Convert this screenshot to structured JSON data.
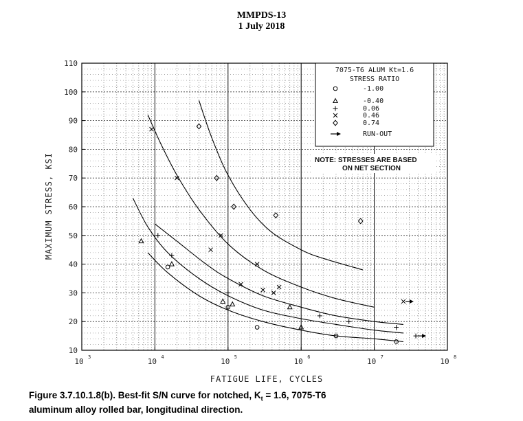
{
  "header": {
    "line1": "MMPDS-13",
    "line2": "1 July 2018"
  },
  "chart_data": {
    "type": "scatter",
    "xscale": "log",
    "xlim": [
      1000,
      100000000
    ],
    "ylim": [
      10,
      110
    ],
    "xlabel": "FATIGUE LIFE, CYCLES",
    "ylabel": "MAXIMUM STRESS, KSI",
    "yticks": [
      "10",
      "20",
      "30",
      "40",
      "50",
      "60",
      "70",
      "80",
      "90",
      "100",
      "110"
    ],
    "xticks": [
      {
        "value": 1000,
        "base": "10",
        "exp": "3"
      },
      {
        "value": 10000,
        "base": "10",
        "exp": "4"
      },
      {
        "value": 100000,
        "base": "10",
        "exp": "5"
      },
      {
        "value": 1000000,
        "base": "10",
        "exp": "6"
      },
      {
        "value": 10000000,
        "base": "10",
        "exp": "7"
      },
      {
        "value": 100000000,
        "base": "10",
        "exp": "8"
      }
    ],
    "grid": true,
    "legend_title": "7075-T6 ALUM Kt=1.6",
    "legend_subtitle": "STRESS RATIO",
    "legend": [
      {
        "symbol": "circle",
        "label": "-1.00"
      },
      {
        "symbol": "triangle",
        "label": "-0.40"
      },
      {
        "symbol": "plus",
        "label": "0.06"
      },
      {
        "symbol": "cross",
        "label": "0.46"
      },
      {
        "symbol": "diamond",
        "label": "0.74"
      },
      {
        "symbol": "arrow",
        "label": "RUN-OUT"
      }
    ],
    "note_line1": "NOTE: STRESSES ARE BASED",
    "note_line2": "ON NET SECTION",
    "series": [
      {
        "symbol": "circle",
        "points": [
          [
            15000,
            39
          ],
          [
            100000,
            25
          ],
          [
            250000,
            18
          ],
          [
            3000000,
            15
          ],
          [
            20000000,
            13
          ]
        ]
      },
      {
        "symbol": "triangle",
        "points": [
          [
            6500,
            48
          ],
          [
            17000,
            40
          ],
          [
            85000,
            27
          ],
          [
            115000,
            26
          ],
          [
            700000,
            25
          ],
          [
            1000000,
            18
          ]
        ]
      },
      {
        "symbol": "plus",
        "points": [
          [
            11000,
            50
          ],
          [
            17000,
            43
          ],
          [
            100000,
            30
          ],
          [
            1800000,
            22
          ],
          [
            4500000,
            20
          ],
          [
            20000000,
            18
          ]
        ]
      },
      {
        "symbol": "cross",
        "points": [
          [
            9000,
            87
          ],
          [
            20000,
            70
          ],
          [
            58000,
            45
          ],
          [
            80000,
            50
          ],
          [
            150000,
            33
          ],
          [
            250000,
            40
          ],
          [
            300000,
            31
          ],
          [
            420000,
            30
          ],
          [
            500000,
            32
          ]
        ]
      },
      {
        "symbol": "diamond",
        "points": [
          [
            40000,
            88
          ],
          [
            70000,
            70
          ],
          [
            120000,
            60
          ],
          [
            450000,
            57
          ],
          [
            6500000,
            55
          ]
        ]
      }
    ],
    "runouts": [
      {
        "symbol": "cross",
        "x": 25000000,
        "y": 27
      },
      {
        "symbol": "plus",
        "x": 37000000,
        "y": 15
      }
    ],
    "curves": [
      {
        "name": "R = 0.74",
        "points": [
          [
            40000,
            97
          ],
          [
            60000,
            84
          ],
          [
            100000,
            71
          ],
          [
            200000,
            59
          ],
          [
            400000,
            51
          ],
          [
            1000000,
            45
          ],
          [
            2000000,
            42
          ],
          [
            7000000,
            38
          ]
        ]
      },
      {
        "name": "R = 0.46",
        "points": [
          [
            8000,
            92
          ],
          [
            12000,
            82
          ],
          [
            20000,
            71
          ],
          [
            40000,
            59
          ],
          [
            100000,
            47
          ],
          [
            300000,
            38
          ],
          [
            1000000,
            32
          ],
          [
            3000000,
            28
          ],
          [
            10000000,
            25
          ]
        ]
      },
      {
        "name": "R = 0.06",
        "points": [
          [
            10000,
            54
          ],
          [
            20000,
            48
          ],
          [
            50000,
            40
          ],
          [
            100000,
            35
          ],
          [
            300000,
            29
          ],
          [
            1000000,
            25
          ],
          [
            3000000,
            22
          ],
          [
            10000000,
            20
          ],
          [
            25000000,
            19
          ]
        ]
      },
      {
        "name": "R = -0.40",
        "points": [
          [
            5000,
            63
          ],
          [
            8000,
            53
          ],
          [
            15000,
            44
          ],
          [
            40000,
            35
          ],
          [
            100000,
            29
          ],
          [
            300000,
            24
          ],
          [
            1000000,
            21
          ],
          [
            3000000,
            19
          ],
          [
            10000000,
            17
          ],
          [
            25000000,
            16
          ]
        ]
      },
      {
        "name": "R = -1.00",
        "points": [
          [
            8000,
            44
          ],
          [
            15000,
            37
          ],
          [
            40000,
            29
          ],
          [
            100000,
            24
          ],
          [
            300000,
            20
          ],
          [
            1000000,
            17
          ],
          [
            3000000,
            15
          ],
          [
            10000000,
            14
          ],
          [
            25000000,
            13
          ]
        ]
      }
    ]
  },
  "caption": {
    "line1_prefix": "Figure 3.7.10.1.8(b).  Best-fit S/N curve for notched, K",
    "subscript": "t",
    "line1_suffix": " = 1.6, 7075-T6",
    "line2": "aluminum alloy rolled bar, longitudinal direction."
  }
}
